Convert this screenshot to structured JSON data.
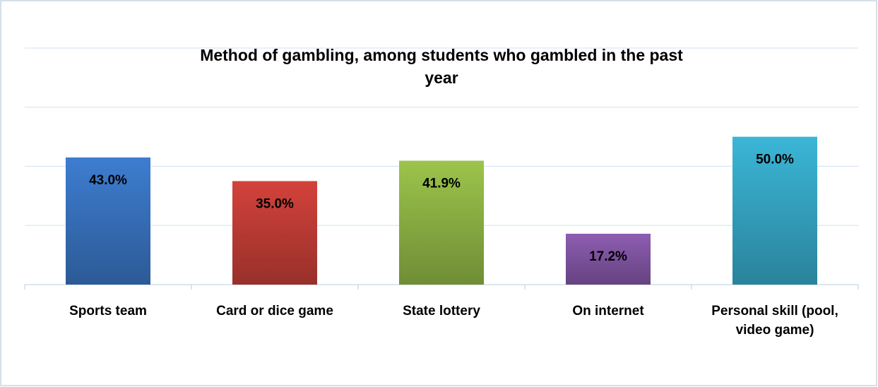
{
  "chart_data": {
    "type": "bar",
    "title": "Method of gambling, among students who gambled in the past year",
    "categories": [
      "Sports team",
      "Card or dice game",
      "State lottery",
      "On internet",
      "Personal skill (pool, video game)"
    ],
    "values": [
      43.0,
      35.0,
      41.9,
      17.2,
      50.0
    ],
    "value_labels": [
      "43.0%",
      "35.0%",
      "41.9%",
      "17.2%",
      "50.0%"
    ],
    "colors": [
      "#3d7dd0",
      "#d3423b",
      "#9cc44b",
      "#8d5db2",
      "#3bb6d7"
    ],
    "ylim": [
      0,
      80
    ],
    "yticks": [
      0,
      20,
      40,
      60,
      80
    ],
    "grid": true
  }
}
